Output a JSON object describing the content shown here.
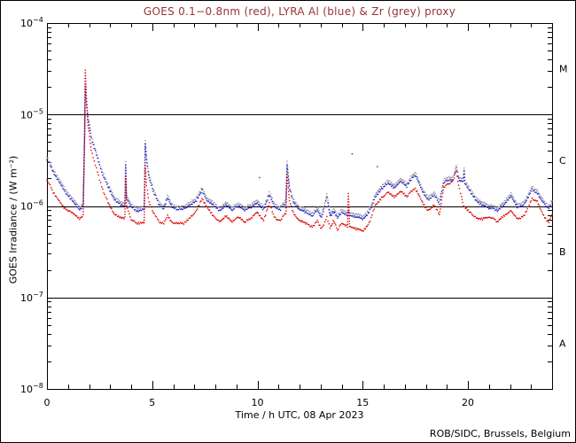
{
  "figure": {
    "title": "GOES 0.1−0.8nm (red), LYRA Al (blue) & Zr (grey) proxy",
    "title_color": "#993333",
    "xlabel": "Time / h UTC, 08 Apr 2023",
    "ylabel": "GOES Irradiance / (W m⁻²)",
    "attribution": "ROB/SIDC, Brussels, Belgium"
  },
  "chart_data": {
    "type": "scatter",
    "title": "GOES 0.1−0.8nm (red), LYRA Al (blue) & Zr (grey) proxy",
    "xlabel": "Time / h UTC, 08 Apr 2023",
    "ylabel": "GOES Irradiance / (W m⁻²)",
    "date": "08 Apr 2023",
    "x_range_hours": [
      0,
      24
    ],
    "x_major_ticks": [
      0,
      5,
      10,
      15,
      20
    ],
    "x_minor_step_hours": 1,
    "y_scale": "log10",
    "y_unit": "W m⁻²",
    "y_decade_exponents": [
      -4,
      -5,
      -6,
      -7,
      -8
    ],
    "reference_line_flux": [
      1e-05,
      1e-06,
      1e-07
    ],
    "flare_class_labels": [
      {
        "label": "M",
        "log10_flux": -4.5
      },
      {
        "label": "C",
        "log10_flux": -5.5
      },
      {
        "label": "B",
        "log10_flux": -6.5
      },
      {
        "label": "A",
        "log10_flux": -7.5
      }
    ],
    "grid": false,
    "axis_color": "#000000",
    "series": [
      {
        "name": "GOES 0.1-0.8nm",
        "color": "#dd0000",
        "points_t_log10flux": [
          [
            0.0,
            -5.72
          ],
          [
            0.3,
            -5.85
          ],
          [
            0.76,
            -6.0
          ],
          [
            1.2,
            -6.08
          ],
          [
            1.55,
            -6.13
          ],
          [
            1.72,
            -6.1
          ],
          [
            1.79,
            -5.3
          ],
          [
            1.82,
            -4.51
          ],
          [
            1.87,
            -4.78
          ],
          [
            1.95,
            -5.12
          ],
          [
            2.1,
            -5.38
          ],
          [
            2.35,
            -5.6
          ],
          [
            2.6,
            -5.78
          ],
          [
            2.9,
            -5.97
          ],
          [
            3.2,
            -6.08
          ],
          [
            3.5,
            -6.14
          ],
          [
            3.7,
            -6.12
          ],
          [
            3.74,
            -5.67
          ],
          [
            3.78,
            -6.0
          ],
          [
            4.0,
            -6.16
          ],
          [
            4.3,
            -6.18
          ],
          [
            4.62,
            -6.17
          ],
          [
            4.67,
            -5.55
          ],
          [
            4.73,
            -5.78
          ],
          [
            4.85,
            -5.95
          ],
          [
            5.05,
            -6.08
          ],
          [
            5.3,
            -6.16
          ],
          [
            5.55,
            -6.19
          ],
          [
            5.73,
            -6.1
          ],
          [
            5.95,
            -6.17
          ],
          [
            6.2,
            -6.2
          ],
          [
            6.5,
            -6.18
          ],
          [
            6.8,
            -6.14
          ],
          [
            7.1,
            -6.04
          ],
          [
            7.37,
            -5.91
          ],
          [
            7.6,
            -6.0
          ],
          [
            7.9,
            -6.12
          ],
          [
            8.2,
            -6.16
          ],
          [
            8.5,
            -6.12
          ],
          [
            8.8,
            -6.17
          ],
          [
            9.1,
            -6.13
          ],
          [
            9.4,
            -6.18
          ],
          [
            9.7,
            -6.14
          ],
          [
            10.0,
            -6.07
          ],
          [
            10.3,
            -6.15
          ],
          [
            10.57,
            -5.97
          ],
          [
            10.8,
            -6.12
          ],
          [
            11.1,
            -6.16
          ],
          [
            11.35,
            -6.08
          ],
          [
            11.41,
            -5.65
          ],
          [
            11.52,
            -5.95
          ],
          [
            11.7,
            -6.08
          ],
          [
            12.0,
            -6.15
          ],
          [
            12.3,
            -6.2
          ],
          [
            12.6,
            -6.22
          ],
          [
            12.85,
            -6.17
          ],
          [
            13.05,
            -6.24
          ],
          [
            13.3,
            -6.12
          ],
          [
            13.45,
            -6.25
          ],
          [
            13.6,
            -6.16
          ],
          [
            13.8,
            -6.26
          ],
          [
            14.0,
            -6.2
          ],
          [
            14.28,
            -6.23
          ],
          [
            14.32,
            -5.88
          ],
          [
            14.38,
            -6.22
          ],
          [
            14.7,
            -6.25
          ],
          [
            15.0,
            -6.28
          ],
          [
            15.3,
            -6.18
          ],
          [
            15.6,
            -6.0
          ],
          [
            15.9,
            -5.9
          ],
          [
            16.2,
            -5.86
          ],
          [
            16.5,
            -5.89
          ],
          [
            16.8,
            -5.85
          ],
          [
            17.1,
            -5.89
          ],
          [
            17.5,
            -5.81
          ],
          [
            17.8,
            -5.95
          ],
          [
            18.1,
            -6.04
          ],
          [
            18.4,
            -6.0
          ],
          [
            18.65,
            -6.09
          ],
          [
            18.85,
            -5.8
          ],
          [
            19.1,
            -5.76
          ],
          [
            19.3,
            -5.71
          ],
          [
            19.45,
            -5.62
          ],
          [
            19.6,
            -5.82
          ],
          [
            19.8,
            -5.99
          ],
          [
            20.1,
            -6.08
          ],
          [
            20.4,
            -6.12
          ],
          [
            20.7,
            -6.15
          ],
          [
            21.0,
            -6.12
          ],
          [
            21.4,
            -6.17
          ],
          [
            21.7,
            -6.12
          ],
          [
            22.05,
            -6.04
          ],
          [
            22.35,
            -6.15
          ],
          [
            22.7,
            -6.09
          ],
          [
            23.05,
            -5.91
          ],
          [
            23.3,
            -5.95
          ],
          [
            23.6,
            -6.1
          ],
          [
            23.85,
            -6.18
          ],
          [
            24.0,
            -6.1
          ]
        ]
      },
      {
        "name": "LYRA Al proxy",
        "color": "#2020cc",
        "points_t_log10flux": [
          [
            0.0,
            -5.5
          ],
          [
            0.3,
            -5.63
          ],
          [
            0.76,
            -5.8
          ],
          [
            1.2,
            -5.95
          ],
          [
            1.55,
            -6.03
          ],
          [
            1.72,
            -6.0
          ],
          [
            1.79,
            -5.2
          ],
          [
            1.82,
            -4.68
          ],
          [
            1.87,
            -4.85
          ],
          [
            1.95,
            -5.05
          ],
          [
            2.1,
            -5.25
          ],
          [
            2.35,
            -5.45
          ],
          [
            2.6,
            -5.62
          ],
          [
            2.9,
            -5.8
          ],
          [
            3.2,
            -5.92
          ],
          [
            3.5,
            -6.0
          ],
          [
            3.7,
            -5.99
          ],
          [
            3.74,
            -5.55
          ],
          [
            3.78,
            -5.92
          ],
          [
            4.0,
            -6.02
          ],
          [
            4.3,
            -6.05
          ],
          [
            4.62,
            -6.02
          ],
          [
            4.67,
            -5.31
          ],
          [
            4.73,
            -5.5
          ],
          [
            4.85,
            -5.68
          ],
          [
            5.05,
            -5.85
          ],
          [
            5.3,
            -5.97
          ],
          [
            5.55,
            -6.03
          ],
          [
            5.73,
            -5.91
          ],
          [
            5.95,
            -6.0
          ],
          [
            6.2,
            -6.05
          ],
          [
            6.5,
            -6.02
          ],
          [
            6.8,
            -6.0
          ],
          [
            7.1,
            -5.93
          ],
          [
            7.37,
            -5.82
          ],
          [
            7.6,
            -5.93
          ],
          [
            7.9,
            -6.0
          ],
          [
            8.2,
            -6.04
          ],
          [
            8.5,
            -6.0
          ],
          [
            8.8,
            -6.04
          ],
          [
            9.1,
            -6.01
          ],
          [
            9.4,
            -6.05
          ],
          [
            9.7,
            -6.02
          ],
          [
            10.0,
            -5.97
          ],
          [
            10.3,
            -6.03
          ],
          [
            10.57,
            -5.88
          ],
          [
            10.8,
            -6.0
          ],
          [
            11.1,
            -6.04
          ],
          [
            11.35,
            -5.97
          ],
          [
            11.41,
            -5.54
          ],
          [
            11.52,
            -5.82
          ],
          [
            11.7,
            -5.96
          ],
          [
            12.0,
            -6.03
          ],
          [
            12.3,
            -6.08
          ],
          [
            12.6,
            -6.1
          ],
          [
            12.85,
            -6.05
          ],
          [
            13.05,
            -6.12
          ],
          [
            13.3,
            -5.9
          ],
          [
            13.45,
            -6.12
          ],
          [
            13.6,
            -6.06
          ],
          [
            13.8,
            -6.13
          ],
          [
            14.0,
            -6.08
          ],
          [
            14.28,
            -6.11
          ],
          [
            14.32,
            -6.08
          ],
          [
            14.38,
            -6.1
          ],
          [
            14.7,
            -6.12
          ],
          [
            15.0,
            -6.15
          ],
          [
            15.3,
            -6.06
          ],
          [
            15.6,
            -5.91
          ],
          [
            15.9,
            -5.8
          ],
          [
            16.2,
            -5.76
          ],
          [
            16.5,
            -5.79
          ],
          [
            16.8,
            -5.74
          ],
          [
            17.1,
            -5.78
          ],
          [
            17.5,
            -5.66
          ],
          [
            17.8,
            -5.83
          ],
          [
            18.1,
            -5.92
          ],
          [
            18.4,
            -5.89
          ],
          [
            18.65,
            -5.97
          ],
          [
            18.85,
            -5.75
          ],
          [
            19.1,
            -5.72
          ],
          [
            19.3,
            -5.7
          ],
          [
            19.45,
            -5.59
          ],
          [
            19.6,
            -5.73
          ],
          [
            19.78,
            -5.74
          ],
          [
            19.82,
            -5.62
          ],
          [
            19.86,
            -5.76
          ],
          [
            20.1,
            -5.85
          ],
          [
            20.4,
            -5.93
          ],
          [
            20.7,
            -6.0
          ],
          [
            21.0,
            -6.02
          ],
          [
            21.4,
            -6.05
          ],
          [
            21.7,
            -6.0
          ],
          [
            22.05,
            -5.88
          ],
          [
            22.35,
            -6.02
          ],
          [
            22.7,
            -5.97
          ],
          [
            23.05,
            -5.81
          ],
          [
            23.3,
            -5.86
          ],
          [
            23.6,
            -5.96
          ],
          [
            23.85,
            -6.03
          ],
          [
            24.0,
            -5.98
          ]
        ]
      },
      {
        "name": "LYRA Zr proxy",
        "color": "#999999",
        "derived_from": "LYRA Al proxy",
        "log10_offset": 0.03
      }
    ],
    "stray_points": [
      {
        "t": 10.1,
        "log10_flux": -5.69,
        "color": "#2020cc"
      },
      {
        "t": 14.5,
        "log10_flux": -5.43,
        "color": "#2020cc"
      },
      {
        "t": 15.7,
        "log10_flux": -5.57,
        "color": "#2020cc"
      }
    ]
  }
}
